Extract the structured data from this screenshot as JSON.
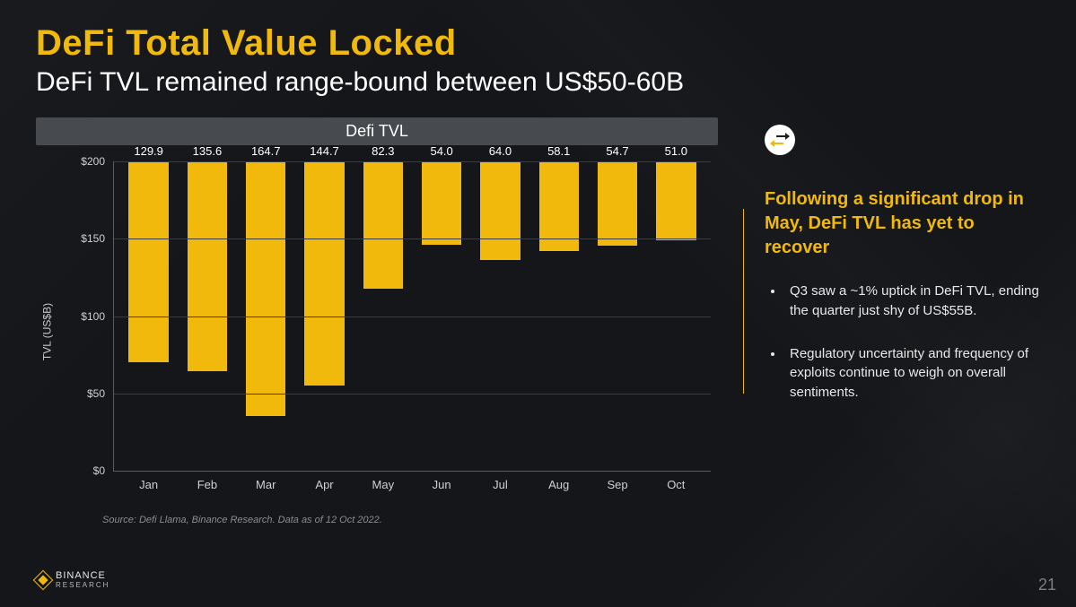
{
  "title": "DeFi Total Value Locked",
  "subtitle": "DeFi TVL remained range-bound between US$50-60B",
  "chart": {
    "type": "bar",
    "title": "Defi TVL",
    "ylabel": "TVL (US$B)",
    "ylim_max": 200,
    "ytick_step": 50,
    "ytick_prefix": "$",
    "bar_color": "#f0b90b",
    "grid_color": "#3a3c40",
    "axis_color": "#5a5c60",
    "label_color": "#ffffff",
    "tick_color": "#d0d0d0",
    "value_fontsize": 13,
    "tick_fontsize": 12,
    "categories": [
      "Jan",
      "Feb",
      "Mar",
      "Apr",
      "May",
      "Jun",
      "Jul",
      "Aug",
      "Sep",
      "Oct"
    ],
    "values": [
      129.9,
      135.6,
      164.7,
      144.7,
      82.3,
      54.0,
      64.0,
      58.1,
      54.7,
      51.0
    ],
    "value_labels": [
      "129.9",
      "135.6",
      "164.7",
      "144.7",
      "82.3",
      "54.0",
      "64.0",
      "58.1",
      "54.7",
      "51.0"
    ]
  },
  "source": "Source: Defi Llama, Binance Research. Data as of 12 Oct 2022.",
  "brand": {
    "name": "BINANCE",
    "sub": "RESEARCH"
  },
  "page_number": "21",
  "callout": {
    "heading": "Following a significant drop in May, DeFi TVL has yet to recover",
    "bullets": [
      "Q3 saw a ~1% uptick in DeFi TVL, ending the quarter just shy of US$55B.",
      "Regulatory uncertainty and frequency of exploits continue to weigh on overall sentiments."
    ]
  }
}
